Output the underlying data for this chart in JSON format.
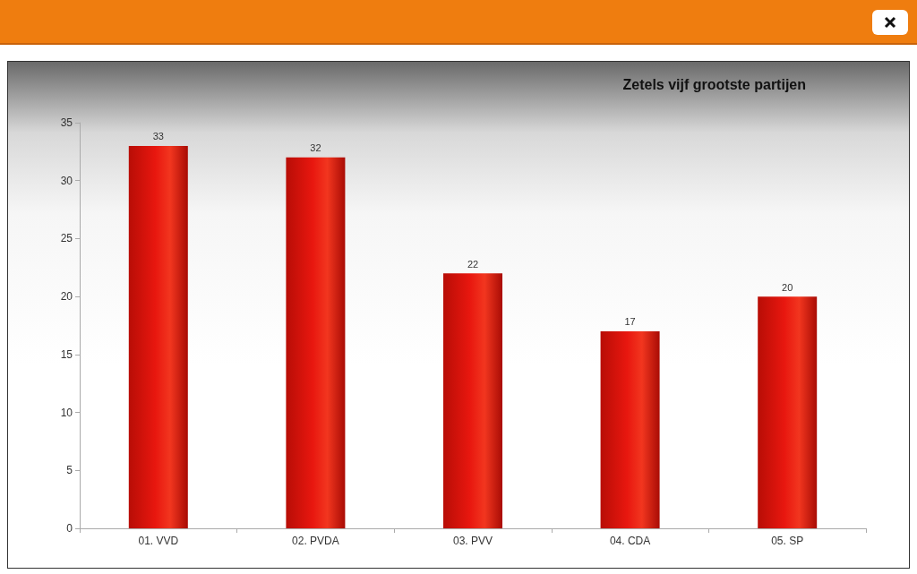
{
  "chart_data": {
    "type": "bar",
    "title": "Zetels vijf grootste partijen",
    "categories": [
      "01. VVD",
      "02. PVDA",
      "03. PVV",
      "04. CDA",
      "05. SP"
    ],
    "values": [
      33,
      32,
      22,
      17,
      20
    ],
    "color": "#e8170f",
    "ylim": [
      0,
      35
    ],
    "yticks": [
      0,
      5,
      10,
      15,
      20,
      25,
      30,
      35
    ],
    "grid": false,
    "data_labels": true
  }
}
